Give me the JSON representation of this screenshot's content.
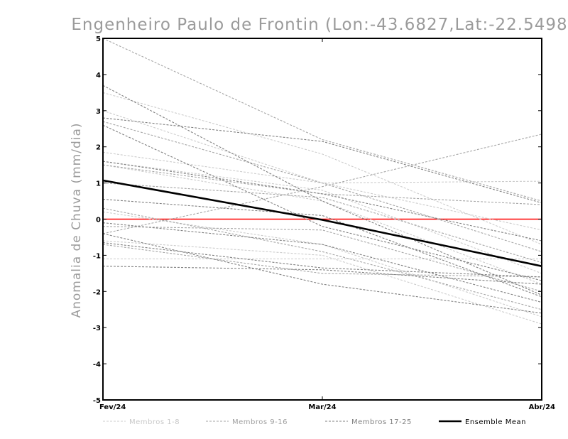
{
  "chart_data": {
    "type": "line",
    "title": "Engenheiro Paulo de Frontin (Lon:-43.6827,Lat:-22.5498)",
    "xlabel": "",
    "ylabel": "Anomalia de Chuva (mm/dia)",
    "categories": [
      "Fev/24",
      "Mar/24",
      "Abr/24"
    ],
    "ylim": [
      -5,
      5
    ],
    "yticks": [
      "-5",
      "-4",
      "-3",
      "-2",
      "-1",
      "0",
      "1",
      "2",
      "3",
      "4",
      "5"
    ],
    "reference_line": {
      "y": 0,
      "color": "#ff0000"
    },
    "legend": [
      {
        "key": "g1",
        "label": "Membros 1-8",
        "color": "#cccccc",
        "style": "dashed"
      },
      {
        "key": "g2",
        "label": "Membros 9-16",
        "color": "#a6a6a6",
        "style": "dashed"
      },
      {
        "key": "g3",
        "label": "Membros 17-25",
        "color": "#808080",
        "style": "dashed"
      },
      {
        "key": "mean",
        "label": "Ensemble Mean",
        "color": "#000000",
        "style": "solid"
      }
    ],
    "series": [
      {
        "name": "Membro 1",
        "group": "g1",
        "values": [
          3.5,
          1.8,
          -0.7
        ]
      },
      {
        "name": "Membro 2",
        "group": "g1",
        "values": [
          1.85,
          1.0,
          1.05
        ]
      },
      {
        "name": "Membro 3",
        "group": "g1",
        "values": [
          1.5,
          0.5,
          -1.8
        ]
      },
      {
        "name": "Membro 4",
        "group": "g1",
        "values": [
          0.2,
          -0.7,
          -2.7
        ]
      },
      {
        "name": "Membro 5",
        "group": "g1",
        "values": [
          -1.1,
          -1.1,
          -1.1
        ]
      },
      {
        "name": "Membro 6",
        "group": "g1",
        "values": [
          3.0,
          1.0,
          -0.3
        ]
      },
      {
        "name": "Membro 7",
        "group": "g1",
        "values": [
          -0.6,
          -1.0,
          -2.9
        ]
      },
      {
        "name": "Membro 8",
        "group": "g1",
        "values": [
          1.6,
          0.8,
          -1.5
        ]
      },
      {
        "name": "Membro 9",
        "group": "g2",
        "values": [
          5.0,
          2.2,
          0.5
        ]
      },
      {
        "name": "Membro 10",
        "group": "g2",
        "values": [
          -0.4,
          0.9,
          2.35
        ]
      },
      {
        "name": "Membro 11",
        "group": "g2",
        "values": [
          2.7,
          1.0,
          -0.9
        ]
      },
      {
        "name": "Membro 12",
        "group": "g2",
        "values": [
          0.3,
          -0.9,
          -2.5
        ]
      },
      {
        "name": "Membro 13",
        "group": "g2",
        "values": [
          1.0,
          0.6,
          -1.2
        ]
      },
      {
        "name": "Membro 14",
        "group": "g2",
        "values": [
          -0.7,
          -1.5,
          -1.6
        ]
      },
      {
        "name": "Membro 15",
        "group": "g2",
        "values": [
          1.5,
          0.7,
          0.4
        ]
      },
      {
        "name": "Membro 16",
        "group": "g2",
        "values": [
          -0.2,
          -0.3,
          -2.0
        ]
      },
      {
        "name": "Membro 17",
        "group": "g3",
        "values": [
          3.7,
          0.5,
          -2.1
        ]
      },
      {
        "name": "Membro 18",
        "group": "g3",
        "values": [
          2.8,
          2.15,
          0.45
        ]
      },
      {
        "name": "Membro 19",
        "group": "g3",
        "values": [
          2.6,
          -0.2,
          -1.7
        ]
      },
      {
        "name": "Membro 20",
        "group": "g3",
        "values": [
          1.6,
          0.7,
          -0.6
        ]
      },
      {
        "name": "Membro 21",
        "group": "g3",
        "values": [
          0.55,
          0.1,
          -2.15
        ]
      },
      {
        "name": "Membro 22",
        "group": "g3",
        "values": [
          -0.1,
          -0.7,
          -2.3
        ]
      },
      {
        "name": "Membro 23",
        "group": "g3",
        "values": [
          -1.3,
          -1.4,
          -1.8
        ]
      },
      {
        "name": "Membro 24",
        "group": "g3",
        "values": [
          -0.4,
          -1.8,
          -2.6
        ]
      },
      {
        "name": "Membro 25",
        "group": "g3",
        "values": [
          -0.65,
          -1.35,
          -1.6
        ]
      },
      {
        "name": "Ensemble Mean",
        "group": "mean",
        "values": [
          1.07,
          -0.02,
          -1.3
        ]
      }
    ]
  }
}
